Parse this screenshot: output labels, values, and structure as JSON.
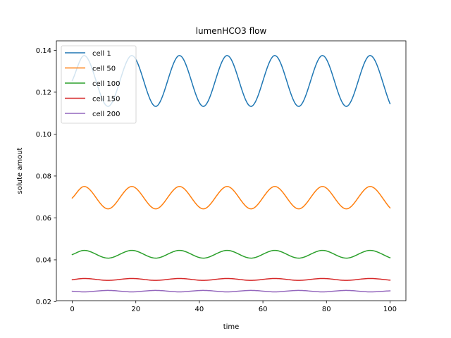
{
  "chart_data": {
    "type": "line",
    "title": "lumenHCO3 flow",
    "xlabel": "time",
    "ylabel": "solute amout",
    "xlim": [
      -5,
      105
    ],
    "ylim": [
      0.0205,
      0.1445
    ],
    "x_ticks": [
      0,
      20,
      40,
      60,
      80,
      100
    ],
    "x_tick_labels": [
      "0",
      "20",
      "40",
      "60",
      "80",
      "100"
    ],
    "y_ticks": [
      0.02,
      0.04,
      0.06,
      0.08,
      0.1,
      0.12,
      0.14
    ],
    "y_tick_labels": [
      "0.02",
      "0.04",
      "0.06",
      "0.08",
      "0.10",
      "0.12",
      "0.14"
    ],
    "grid": false,
    "legend_position": "upper-left",
    "x_sample_range": [
      0,
      100
    ],
    "series": [
      {
        "name": "cell 1",
        "color": "#1f77b4",
        "x": [
          0,
          3.75,
          11.25,
          18.75,
          26.25,
          33.75,
          41.25,
          48.75,
          56.25,
          63.75,
          71.25,
          78.75,
          86.25,
          93.75,
          100
        ],
        "y": [
          0.1255,
          0.1375,
          0.1132,
          0.1375,
          0.1132,
          0.1375,
          0.1132,
          0.1375,
          0.1132,
          0.1375,
          0.1132,
          0.1375,
          0.1132,
          0.1375,
          0.1145
        ]
      },
      {
        "name": "cell 50",
        "color": "#ff7f0e",
        "x": [
          0,
          3.75,
          11.25,
          18.75,
          26.25,
          33.75,
          41.25,
          48.75,
          56.25,
          63.75,
          71.25,
          78.75,
          86.25,
          93.75,
          100
        ],
        "y": [
          0.0695,
          0.075,
          0.0643,
          0.075,
          0.0643,
          0.075,
          0.0643,
          0.075,
          0.0643,
          0.075,
          0.0643,
          0.075,
          0.0643,
          0.075,
          0.0648
        ]
      },
      {
        "name": "cell 100",
        "color": "#2ca02c",
        "x": [
          0,
          3.75,
          11.25,
          18.75,
          26.25,
          33.75,
          41.25,
          48.75,
          56.25,
          63.75,
          71.25,
          78.75,
          86.25,
          93.75,
          100
        ],
        "y": [
          0.0425,
          0.0445,
          0.0408,
          0.0445,
          0.0408,
          0.0445,
          0.0408,
          0.0445,
          0.0408,
          0.0445,
          0.0408,
          0.0445,
          0.0408,
          0.0445,
          0.041
        ]
      },
      {
        "name": "cell 150",
        "color": "#d62728",
        "x": [
          0,
          3.75,
          11.25,
          18.75,
          26.25,
          33.75,
          41.25,
          48.75,
          56.25,
          63.75,
          71.25,
          78.75,
          86.25,
          93.75,
          100
        ],
        "y": [
          0.0305,
          0.0311,
          0.0302,
          0.0311,
          0.0302,
          0.0311,
          0.0302,
          0.0311,
          0.0302,
          0.0311,
          0.0302,
          0.0311,
          0.0302,
          0.0311,
          0.0303
        ]
      },
      {
        "name": "cell 200",
        "color": "#9467bd",
        "x": [
          0,
          3.75,
          11.25,
          18.75,
          26.25,
          33.75,
          41.25,
          48.75,
          56.25,
          63.75,
          71.25,
          78.75,
          86.25,
          93.75,
          100
        ],
        "y": [
          0.025,
          0.0247,
          0.0254,
          0.0247,
          0.0254,
          0.0247,
          0.0254,
          0.0247,
          0.0254,
          0.0247,
          0.0254,
          0.0247,
          0.0254,
          0.0247,
          0.0252
        ]
      }
    ]
  }
}
